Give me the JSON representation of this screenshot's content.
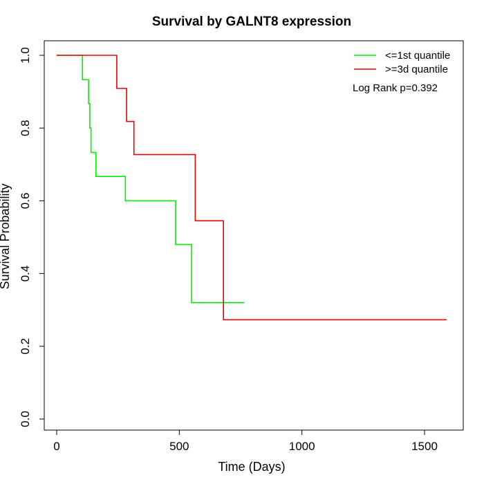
{
  "chart_data": {
    "type": "line",
    "title": "Survival by GALNT8 expression",
    "xlabel": "Time (Days)",
    "ylabel": "Survival Probability",
    "xlim": [
      0,
      1650
    ],
    "ylim": [
      0,
      1.0
    ],
    "x_ticks": [
      0,
      500,
      1000,
      1500
    ],
    "y_ticks": [
      0.0,
      0.2,
      0.4,
      0.6,
      0.8,
      1.0
    ],
    "x_tick_labels": [
      "0",
      "500",
      "1000",
      "1500"
    ],
    "y_tick_labels": [
      "0.0",
      "0.2",
      "0.4",
      "0.6",
      "0.8",
      "1.0"
    ],
    "grid": false,
    "legend_position": "top-right",
    "annotation": "Log Rank p=0.392",
    "series": [
      {
        "name": "<=1st quantile",
        "color": "#00ee00",
        "step": true,
        "x": [
          0,
          105,
          130,
          135,
          140,
          152,
          160,
          280,
          485,
          550,
          765
        ],
        "y": [
          1.0,
          0.933,
          0.867,
          0.8,
          0.733,
          0.733,
          0.667,
          0.6,
          0.48,
          0.32,
          0.32
        ]
      },
      {
        "name": ">=3d quantile",
        "color": "#ee0000",
        "step": true,
        "x": [
          0,
          245,
          285,
          315,
          565,
          680,
          1590
        ],
        "y": [
          1.0,
          0.909,
          0.818,
          0.727,
          0.545,
          0.273,
          0.273
        ]
      }
    ]
  }
}
